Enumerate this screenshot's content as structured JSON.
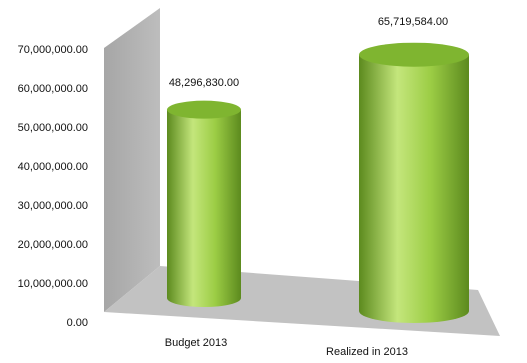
{
  "chart_data": {
    "type": "bar",
    "style": "3d-cylinder",
    "categories": [
      "Budget 2013",
      "Realized in 2013"
    ],
    "values": [
      48296830.0,
      65719584.0
    ],
    "data_labels": [
      "48,296,830.00",
      "65,719,584.00"
    ],
    "y_ticks": [
      "0.00",
      "10,000,000.00",
      "20,000,000.00",
      "30,000,000.00",
      "40,000,000.00",
      "50,000,000.00",
      "60,000,000.00",
      "70,000,000.00"
    ],
    "ylim": [
      0,
      70000000
    ],
    "title": "",
    "xlabel": "",
    "ylabel": "",
    "grid": false,
    "legend": "none",
    "colors": {
      "bar_light": "#c4e67c",
      "bar_mid": "#8ec23a",
      "bar_dark": "#5c8a1e",
      "bar_top": "#7fb530",
      "wall": "#b3b3b3",
      "wall_edge": "#c8c8c8",
      "floor": "#c2c2c2"
    }
  }
}
